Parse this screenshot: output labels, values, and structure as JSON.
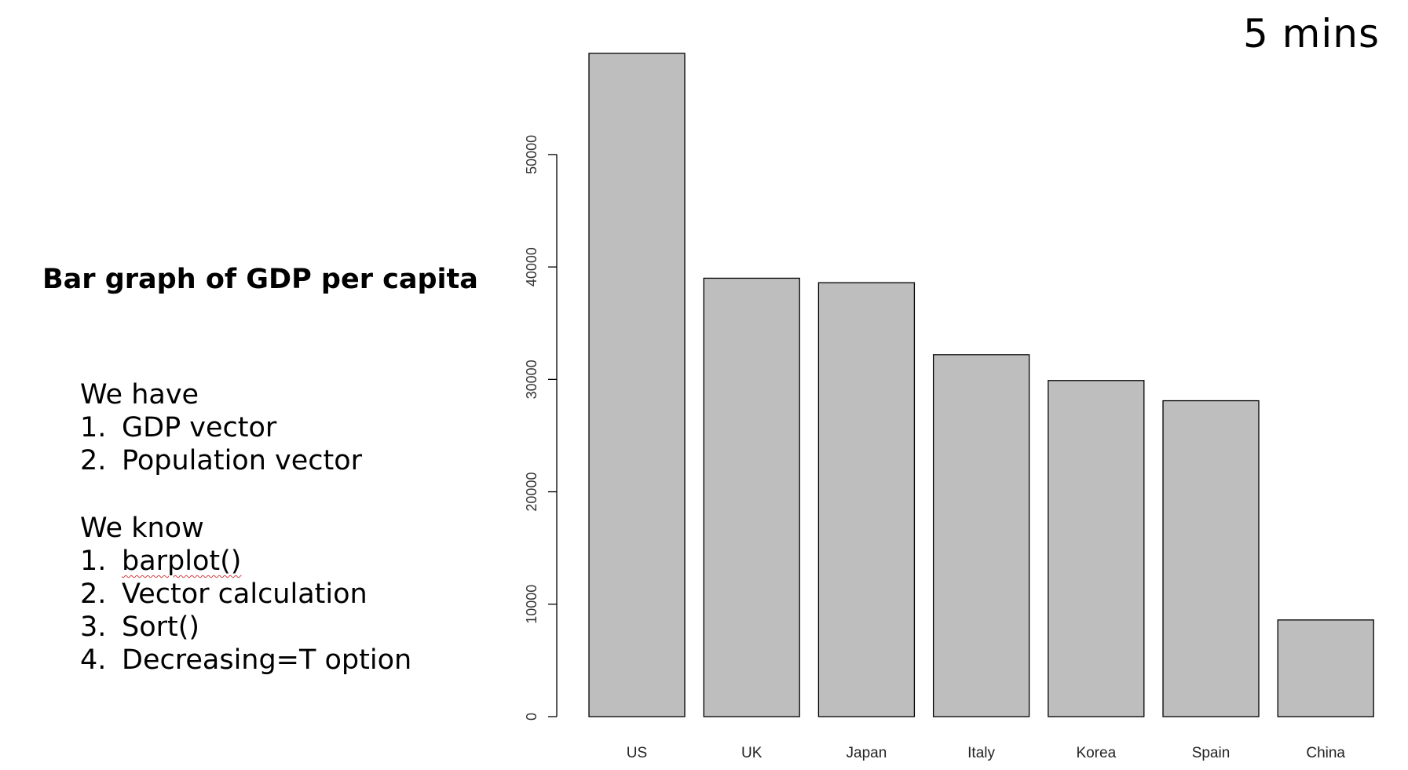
{
  "timer": "5 mins",
  "title": "Bar graph of GDP per capita",
  "have": {
    "heading": "We have",
    "items": [
      {
        "num": "1.",
        "text": "GDP vector"
      },
      {
        "num": "2.",
        "text": "Population vector"
      }
    ]
  },
  "know": {
    "heading": "We know",
    "items": [
      {
        "num": "1.",
        "text": "barplot()"
      },
      {
        "num": "2.",
        "text": "Vector calculation"
      },
      {
        "num": "3.",
        "text": "Sort()"
      },
      {
        "num": "4.",
        "text": "Decreasing=T option"
      }
    ]
  },
  "chart_data": {
    "type": "bar",
    "categories": [
      "US",
      "UK",
      "Japan",
      "Italy",
      "Korea",
      "Spain",
      "China"
    ],
    "values": [
      59000,
      39000,
      38600,
      32200,
      29900,
      28100,
      8600
    ],
    "yticks": [
      0,
      10000,
      20000,
      30000,
      40000,
      50000
    ],
    "ylim": [
      0,
      59000
    ],
    "bar_color": "#bebebe",
    "grid": false
  }
}
